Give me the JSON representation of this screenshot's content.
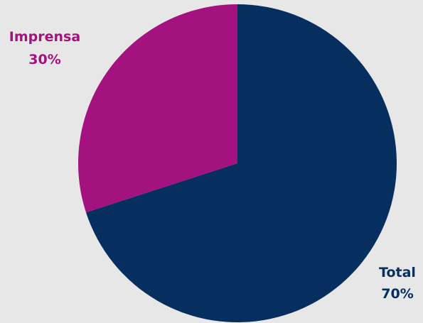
{
  "chart_data": {
    "type": "pie",
    "slices": [
      {
        "name": "Total",
        "value": 70,
        "label": "Total",
        "percent_label": "70%",
        "color": "#062E5E"
      },
      {
        "name": "Imprensa",
        "value": 30,
        "label": "Imprensa",
        "percent_label": "30%",
        "color": "#A3127E"
      }
    ],
    "start_angle_deg": 0,
    "direction": "clockwise",
    "legend": "none",
    "data_labels": "outside"
  },
  "colors": {
    "background": "#E7E7E7"
  }
}
